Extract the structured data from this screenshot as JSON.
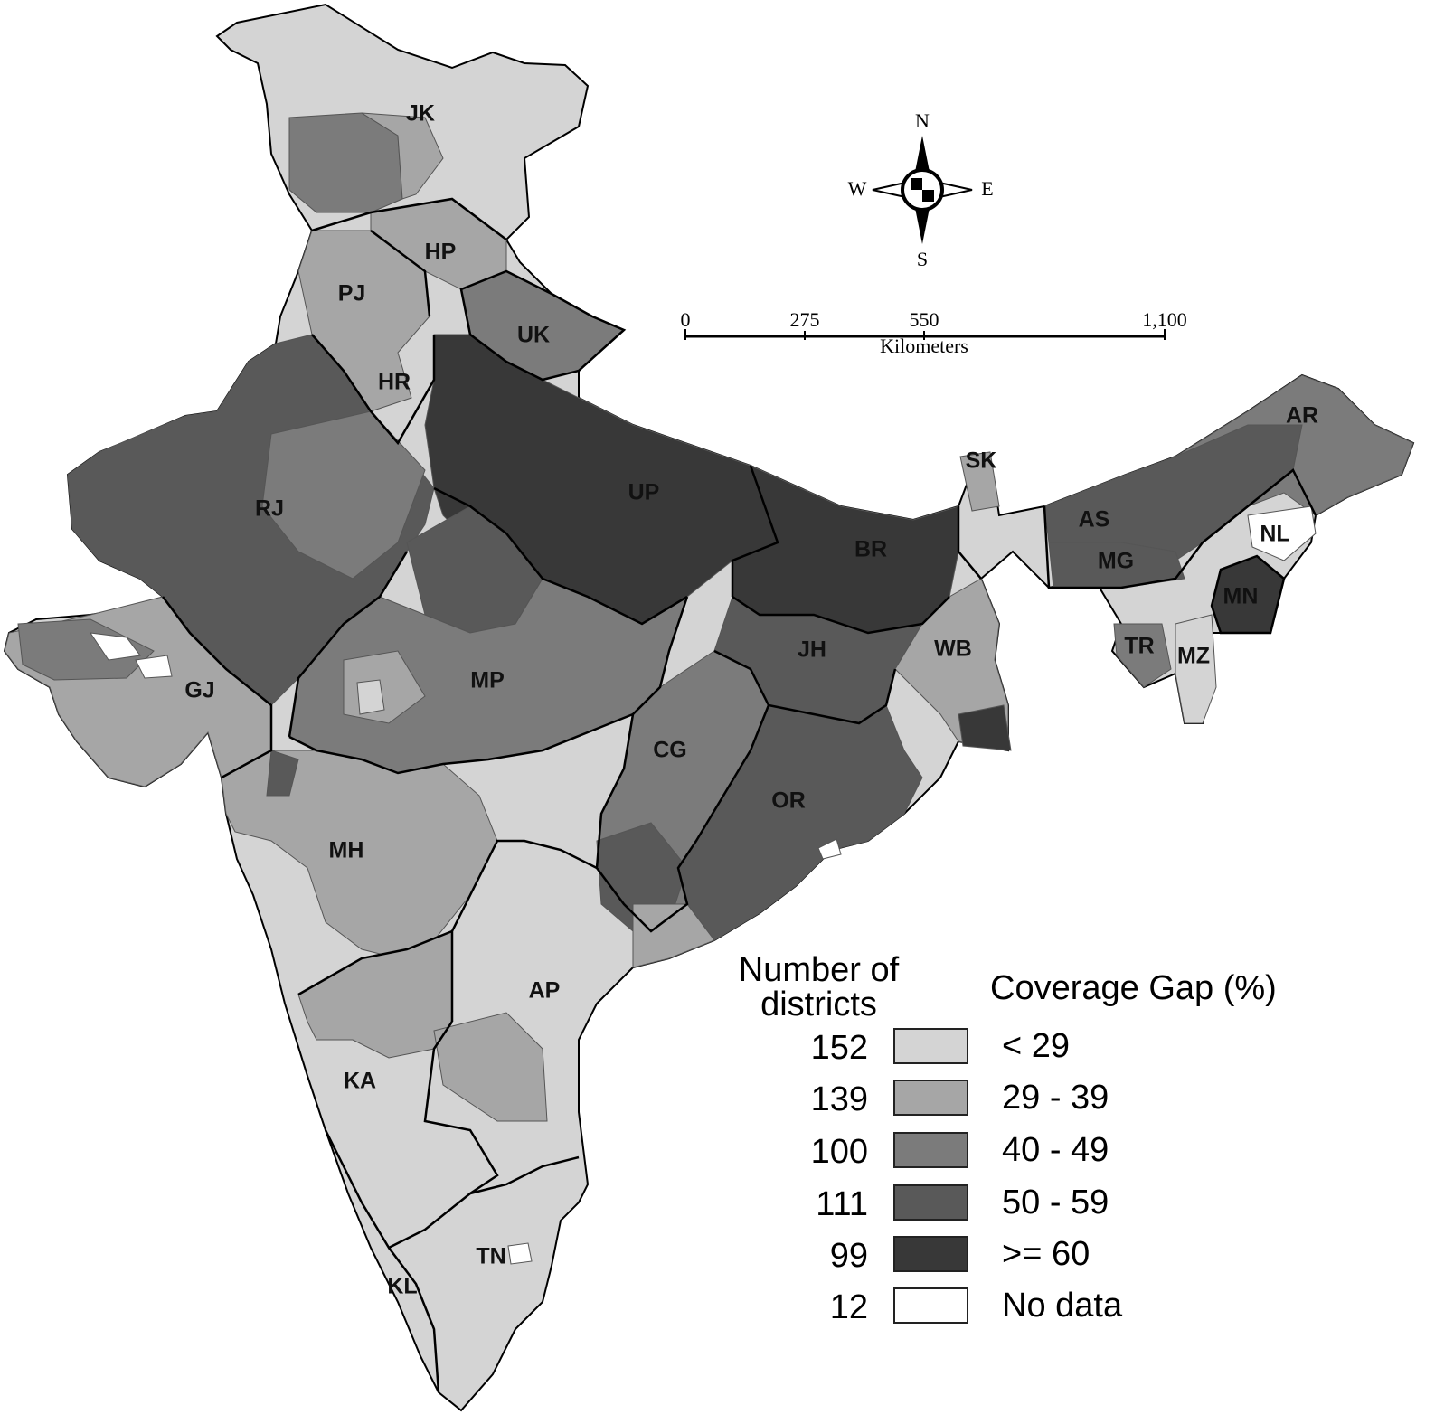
{
  "map": {
    "state_labels": [
      {
        "code": "JK"
      },
      {
        "code": "HP"
      },
      {
        "code": "PJ"
      },
      {
        "code": "UK"
      },
      {
        "code": "HR"
      },
      {
        "code": "RJ"
      },
      {
        "code": "UP"
      },
      {
        "code": "SK"
      },
      {
        "code": "AR"
      },
      {
        "code": "AS"
      },
      {
        "code": "NL"
      },
      {
        "code": "MG"
      },
      {
        "code": "BR"
      },
      {
        "code": "MN"
      },
      {
        "code": "JH"
      },
      {
        "code": "WB"
      },
      {
        "code": "TR"
      },
      {
        "code": "MZ"
      },
      {
        "code": "GJ"
      },
      {
        "code": "MP"
      },
      {
        "code": "CG"
      },
      {
        "code": "OR"
      },
      {
        "code": "MH"
      },
      {
        "code": "AP"
      },
      {
        "code": "KA"
      },
      {
        "code": "TN"
      },
      {
        "code": "KL"
      }
    ],
    "compass": {
      "n": "N",
      "s": "S",
      "e": "E",
      "w": "W"
    },
    "scale_bar": {
      "ticks": [
        "0",
        "275",
        "550",
        "1,100"
      ],
      "unit": "Kilometers"
    }
  },
  "legend": {
    "count_title": "Number of districts",
    "gap_title": "Coverage Gap (%)",
    "classes": [
      {
        "count": "152",
        "range": "< 29",
        "color": "#d4d4d4"
      },
      {
        "count": "139",
        "range": "29 - 39",
        "color": "#a6a6a6"
      },
      {
        "count": "100",
        "range": "40 - 49",
        "color": "#7b7b7b"
      },
      {
        "count": "111",
        "range": "50 - 59",
        "color": "#595959"
      },
      {
        "count": "99",
        "range": ">= 60",
        "color": "#383838"
      },
      {
        "count": "12",
        "range": "No data",
        "color": "#ffffff"
      }
    ]
  }
}
